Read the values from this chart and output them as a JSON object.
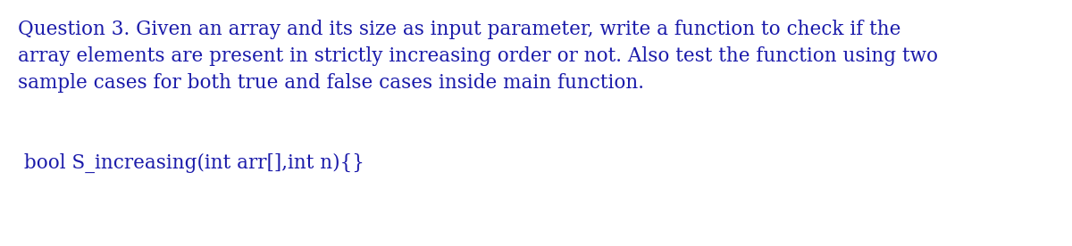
{
  "background_color": "#ffffff",
  "text_color": "#1a1aaa",
  "line1": "Question 3. Given an array and its size as input parameter, write a function to check if the",
  "line2": "array elements are present in strictly increasing order or not. Also test the function using two",
  "line3": "sample cases for both true and false cases inside main function.",
  "line4": " bool S_increasing(int arr[],int n){}",
  "font_size_main": 15.5,
  "font_family": "DejaVu Serif",
  "fig_width": 12.0,
  "fig_height": 2.76,
  "dpi": 100
}
